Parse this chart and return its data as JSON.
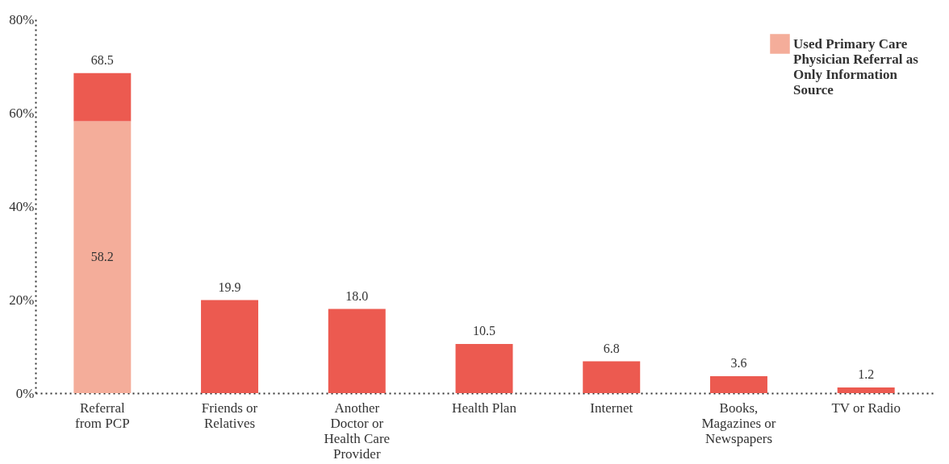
{
  "chart_data": {
    "type": "bar",
    "stacked": true,
    "categories": [
      "Referral from PCP",
      "Friends or Relatives",
      "Another Doctor or Health Care Provider",
      "Health Plan",
      "Internet",
      "Books, Magazines or Newspapers",
      "TV or Radio"
    ],
    "series": [
      {
        "name": "Used Primary Care Physician Referral as Only Information Source",
        "color": "#f4ad9a",
        "values": [
          58.2,
          null,
          null,
          null,
          null,
          null,
          null
        ],
        "value_labels": [
          "58.2",
          null,
          null,
          null,
          null,
          null,
          null
        ]
      },
      {
        "color": "#ec5a50",
        "values": [
          10.3,
          19.9,
          18.0,
          10.5,
          6.8,
          3.6,
          1.2
        ]
      }
    ],
    "totals": [
      "68.5",
      "19.9",
      "18.0",
      "10.5",
      "6.8",
      "3.6",
      "1.2"
    ],
    "ylim": [
      0,
      80
    ],
    "yticks": [
      {
        "value": 0,
        "label": "0%"
      },
      {
        "value": 20,
        "label": "20%"
      },
      {
        "value": 40,
        "label": "40%"
      },
      {
        "value": 60,
        "label": "60%"
      },
      {
        "value": 80,
        "label": "80%"
      }
    ],
    "legend": "top right"
  }
}
